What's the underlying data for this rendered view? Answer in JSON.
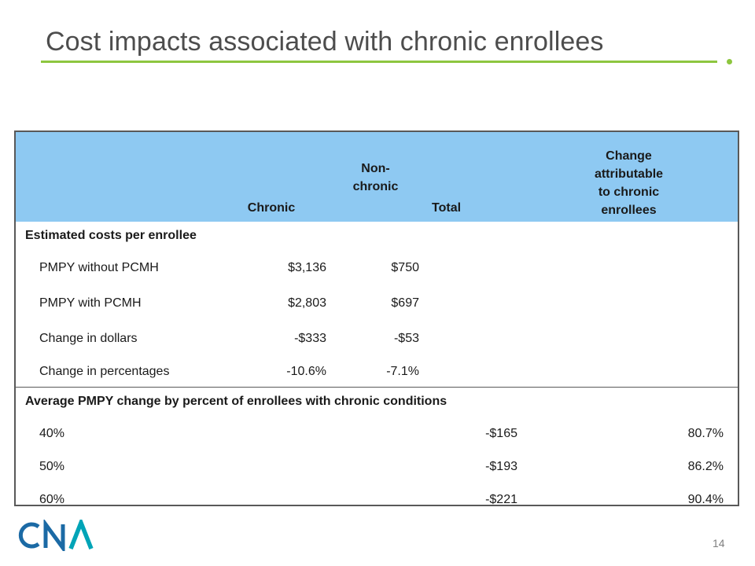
{
  "title": "Cost impacts associated with chronic enrollees",
  "colors": {
    "accent_green": "#8dc63f",
    "header_blue": "#8ec9f2",
    "logo_teal": "#00a4b7",
    "logo_blue": "#1b6aa5"
  },
  "table": {
    "headers": {
      "chronic": "Chronic",
      "nonchronic_line1": "Non-",
      "nonchronic_line2": "chronic",
      "total": "Total",
      "change_line1": "Change",
      "change_line2": "attributable",
      "change_line3": "to chronic",
      "change_line4": "enrollees"
    },
    "section1": {
      "label": "Estimated costs per enrollee",
      "rows": [
        {
          "label": "PMPY without PCMH",
          "chronic": "$3,136",
          "nonchronic": "$750"
        },
        {
          "label": "PMPY with PCMH",
          "chronic": "$2,803",
          "nonchronic": "$697"
        },
        {
          "label": "Change in dollars",
          "chronic": "-$333",
          "nonchronic": "-$53"
        },
        {
          "label": "Change in percentages",
          "chronic": "-10.6%",
          "nonchronic": "-7.1%"
        }
      ]
    },
    "section2": {
      "label": "Average PMPY change by percent of enrollees with chronic conditions",
      "rows": [
        {
          "label": "40%",
          "total": "-$165",
          "change": "80.7%"
        },
        {
          "label": "50%",
          "total": "-$193",
          "change": "86.2%"
        },
        {
          "label": "60%",
          "total": "-$221",
          "change": "90.4%"
        }
      ]
    }
  },
  "logo": {
    "text": "CNA",
    "icon": "cna-logo"
  },
  "page_number": "14"
}
